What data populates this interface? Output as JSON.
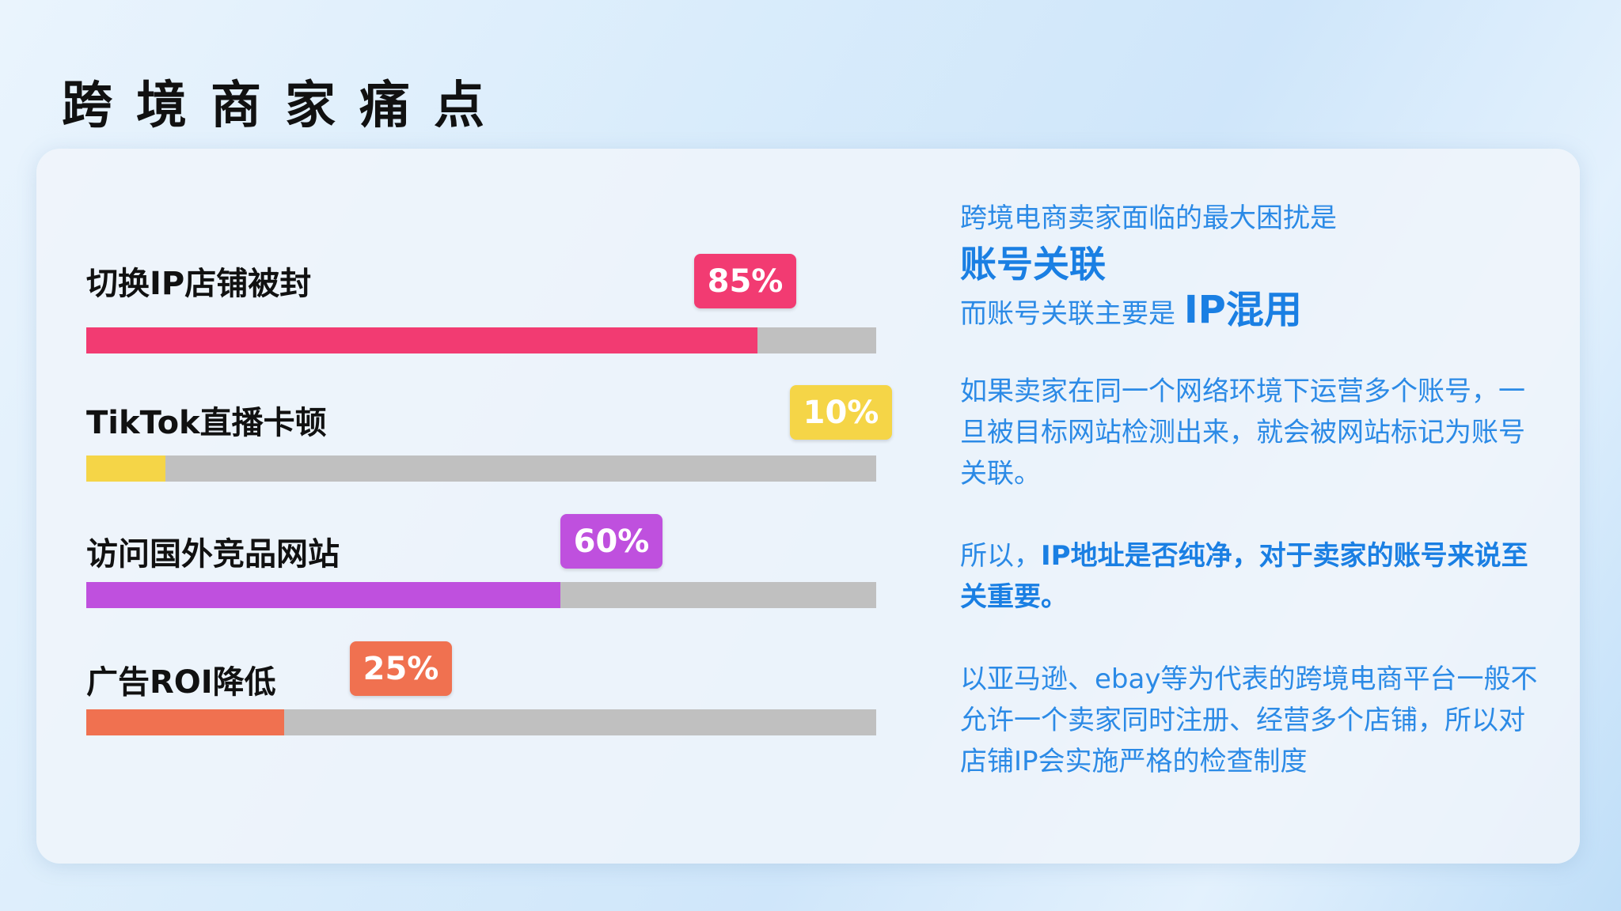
{
  "title": "跨境商家痛点",
  "bars": [
    {
      "label": "切换IP店铺被封",
      "value": 85,
      "badge": "85%",
      "color": "#f23b72"
    },
    {
      "label": "TikTok直播卡顿",
      "value": 10,
      "badge": "10%",
      "color": "#f5d547"
    },
    {
      "label": "访问国外竞品网站",
      "value": 60,
      "badge": "60%",
      "color": "#bf50de"
    },
    {
      "label": "广告ROI降低",
      "value": 25,
      "badge": "25%",
      "color": "#f07150"
    }
  ],
  "right": {
    "line1": "跨境电商卖家面临的最大困扰是",
    "headline": "账号关联",
    "line3_prefix": "而账号关联主要是 ",
    "line3_emph": "IP混用",
    "para1": "如果卖家在同一个网络环境下运营多个账号，一旦被目标网站检测出来，就会被网站标记为账号关联。",
    "para2_prefix": "所以，",
    "para2_emph": "IP地址是否纯净，对于卖家的账号来说至关重要。",
    "para3": "以亚马逊、ebay等为代表的跨境电商平台一般不允许一个卖家同时注册、经营多个店铺，所以对店铺IP会实施严格的检查制度"
  }
}
